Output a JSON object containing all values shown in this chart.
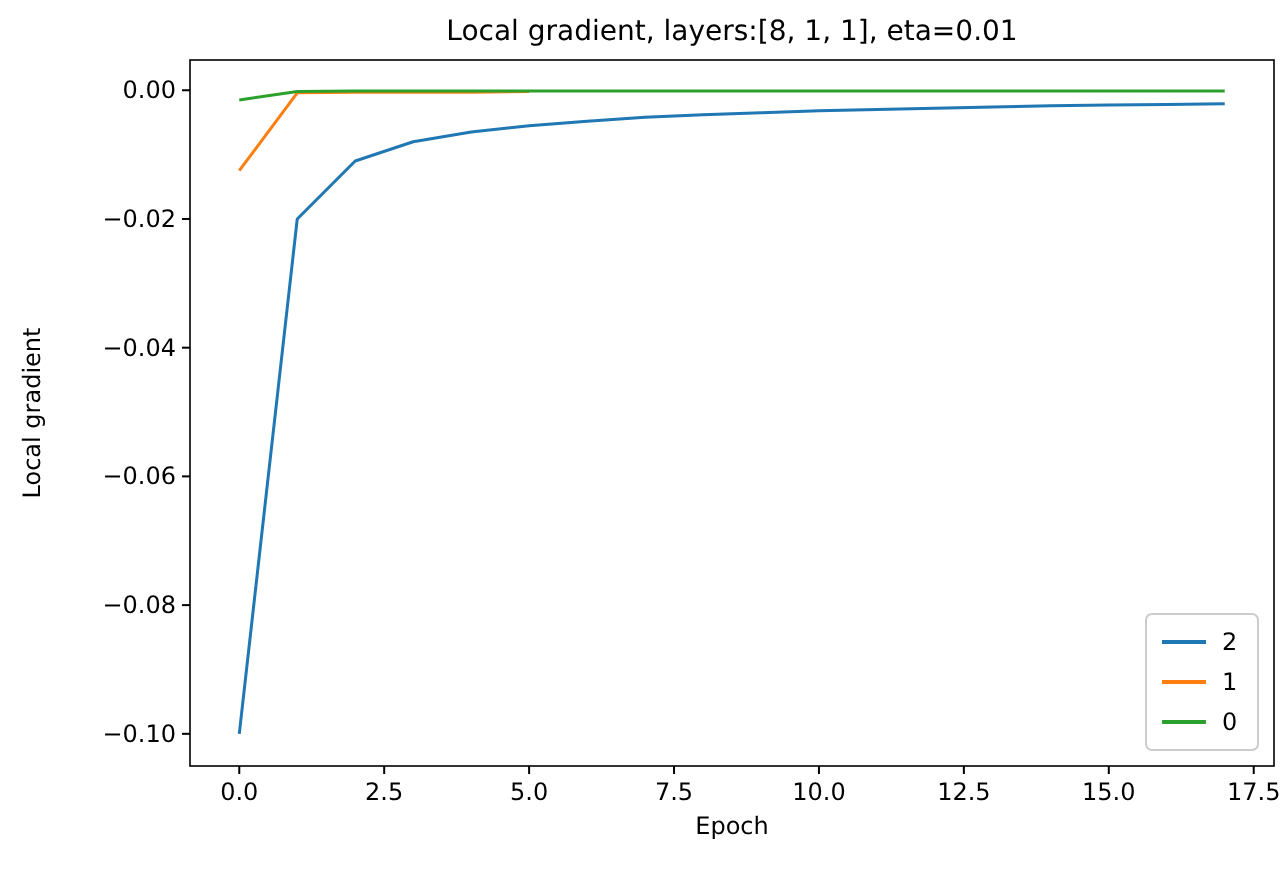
{
  "chart_data": {
    "type": "line",
    "title": "Local gradient, layers:[8, 1, 1], eta=0.01",
    "xlabel": "Epoch",
    "ylabel": "Local gradient",
    "x": [
      0,
      1,
      2,
      3,
      4,
      5,
      6,
      7,
      8,
      9,
      10,
      11,
      12,
      13,
      14,
      15,
      16,
      17
    ],
    "series": [
      {
        "name": "2",
        "color": "#1f77b4",
        "values": [
          -0.1,
          -0.02,
          -0.011,
          -0.008,
          -0.0065,
          -0.0055,
          -0.0048,
          -0.0042,
          -0.0038,
          -0.0035,
          -0.0032,
          -0.003,
          -0.0028,
          -0.0026,
          -0.0024,
          -0.0023,
          -0.0022,
          -0.0021
        ]
      },
      {
        "name": "1",
        "color": "#ff7f0e",
        "values": [
          -0.0125,
          -0.0004,
          -0.0003,
          -0.0003,
          -0.0003,
          -0.0002,
          null,
          null,
          null,
          null,
          null,
          null,
          null,
          null,
          null,
          null,
          null,
          null
        ]
      },
      {
        "name": "0",
        "color": "#2ca02c",
        "values": [
          -0.0015,
          -0.0002,
          -0.0001,
          -0.0001,
          -0.0001,
          -0.0001,
          -0.0001,
          -0.0001,
          -0.0001,
          -0.0001,
          -0.0001,
          -0.0001,
          -0.0001,
          -0.0001,
          -0.0001,
          -0.0001,
          -0.0001,
          -0.0001
        ]
      }
    ],
    "xlim": [
      -0.85,
      17.85
    ],
    "xticks": [
      {
        "value": 0,
        "label": "0.0"
      },
      {
        "value": 2.5,
        "label": "2.5"
      },
      {
        "value": 5,
        "label": "5.0"
      },
      {
        "value": 7.5,
        "label": "7.5"
      },
      {
        "value": 10,
        "label": "10.0"
      },
      {
        "value": 12.5,
        "label": "12.5"
      },
      {
        "value": 15,
        "label": "15.0"
      },
      {
        "value": 17.5,
        "label": "17.5"
      }
    ],
    "ylim": [
      -0.105,
      0.0047
    ],
    "yticks": [
      {
        "value": -0.1,
        "label": "−0.10"
      },
      {
        "value": -0.08,
        "label": "−0.08"
      },
      {
        "value": -0.06,
        "label": "−0.06"
      },
      {
        "value": -0.04,
        "label": "−0.04"
      },
      {
        "value": -0.02,
        "label": "−0.02"
      },
      {
        "value": 0,
        "label": "0.00"
      }
    ],
    "legend": "bottom right",
    "grid": false
  }
}
